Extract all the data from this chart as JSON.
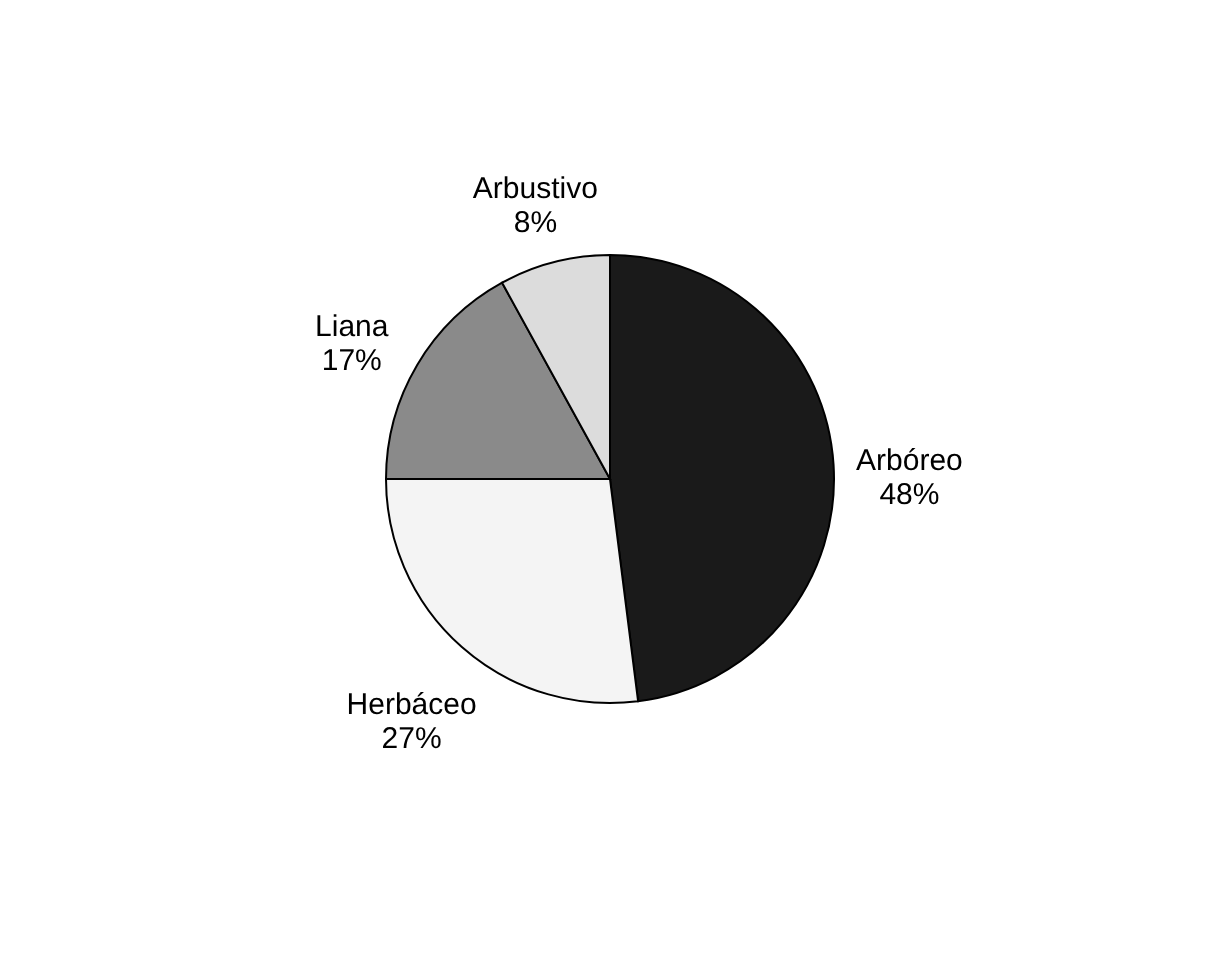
{
  "chart_data": {
    "type": "pie",
    "categories": [
      "Arbóreo",
      "Herbáceo",
      "Liana",
      "Arbustivo"
    ],
    "values": [
      48,
      27,
      17,
      8
    ],
    "value_labels": [
      "48%",
      "27%",
      "17%",
      "8%"
    ],
    "colors": [
      "#1a1a1a",
      "#f4f4f4",
      "#8a8a8a",
      "#dcdcdc"
    ],
    "legend": false
  }
}
